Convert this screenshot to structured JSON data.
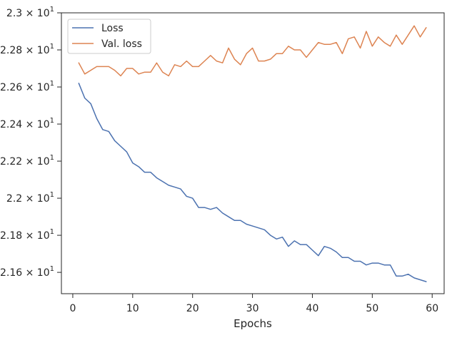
{
  "chart_data": {
    "type": "line",
    "title": "",
    "xlabel": "Epochs",
    "ylabel": "",
    "xlim": [
      -1.9,
      62
    ],
    "ylim": [
      21.485,
      23.0
    ],
    "x_ticks": [
      0,
      10,
      20,
      30,
      40,
      50,
      60
    ],
    "y_ticks": [
      {
        "mantissa": "2.16",
        "value": 21.6
      },
      {
        "mantissa": "2.18",
        "value": 21.8
      },
      {
        "mantissa": "2.2",
        "value": 22.0
      },
      {
        "mantissa": "2.22",
        "value": 22.2
      },
      {
        "mantissa": "2.24",
        "value": 22.4
      },
      {
        "mantissa": "2.26",
        "value": 22.6
      },
      {
        "mantissa": "2.28",
        "value": 22.8
      },
      {
        "mantissa": "2.3",
        "value": 23.0
      }
    ],
    "y_tick_multiplier": "× 10",
    "y_tick_exponent": "1",
    "grid": false,
    "legend_position": "top-left",
    "x": [
      1,
      2,
      3,
      4,
      5,
      6,
      7,
      8,
      9,
      10,
      11,
      12,
      13,
      14,
      15,
      16,
      17,
      18,
      19,
      20,
      21,
      22,
      23,
      24,
      25,
      26,
      27,
      28,
      29,
      30,
      31,
      32,
      33,
      34,
      35,
      36,
      37,
      38,
      39,
      40,
      41,
      42,
      43,
      44,
      45,
      46,
      47,
      48,
      49,
      50,
      51,
      52,
      53,
      54,
      55,
      56,
      57,
      58,
      59
    ],
    "series": [
      {
        "name": "Loss",
        "color": "#4c72b0",
        "values": [
          22.62,
          22.54,
          22.51,
          22.43,
          22.37,
          22.36,
          22.31,
          22.28,
          22.25,
          22.19,
          22.17,
          22.14,
          22.14,
          22.11,
          22.09,
          22.07,
          22.06,
          22.05,
          22.01,
          22.0,
          21.95,
          21.95,
          21.94,
          21.95,
          21.92,
          21.9,
          21.88,
          21.88,
          21.86,
          21.85,
          21.84,
          21.83,
          21.8,
          21.78,
          21.79,
          21.74,
          21.77,
          21.75,
          21.75,
          21.72,
          21.69,
          21.74,
          21.73,
          21.71,
          21.68,
          21.68,
          21.66,
          21.66,
          21.64,
          21.65,
          21.65,
          21.64,
          21.64,
          21.58,
          21.58,
          21.59,
          21.57,
          21.56,
          21.55
        ]
      },
      {
        "name": "Val. loss",
        "color": "#dd8452",
        "values": [
          22.73,
          22.67,
          22.69,
          22.71,
          22.71,
          22.71,
          22.69,
          22.66,
          22.7,
          22.7,
          22.67,
          22.68,
          22.68,
          22.73,
          22.68,
          22.66,
          22.72,
          22.71,
          22.74,
          22.71,
          22.71,
          22.74,
          22.77,
          22.74,
          22.73,
          22.81,
          22.75,
          22.72,
          22.78,
          22.81,
          22.74,
          22.74,
          22.75,
          22.78,
          22.78,
          22.82,
          22.8,
          22.8,
          22.76,
          22.8,
          22.84,
          22.83,
          22.83,
          22.84,
          22.78,
          22.86,
          22.87,
          22.81,
          22.9,
          22.82,
          22.87,
          22.84,
          22.82,
          22.88,
          22.83,
          22.88,
          22.93,
          22.87,
          22.92
        ]
      }
    ]
  }
}
